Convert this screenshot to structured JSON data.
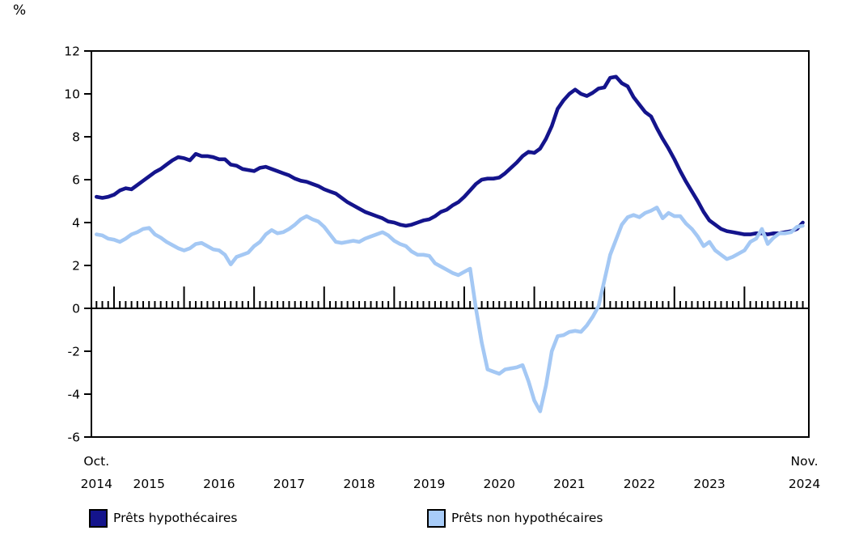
{
  "chart_data": {
    "type": "line",
    "title": "",
    "ylabel": "%",
    "ylim": [
      -6,
      12
    ],
    "ytick_values": [
      12,
      10,
      8,
      6,
      4,
      2,
      0,
      -2,
      -4,
      -6
    ],
    "ytick_labels": [
      "12",
      "10",
      "8",
      "6",
      "4",
      "2",
      "0",
      "-2",
      "-4",
      "-6"
    ],
    "grid": false,
    "legend_position": "bottom",
    "x_axis": {
      "frequency": "monthly",
      "first_point_label_line1": "Oct.",
      "first_point_label_line2": "2014",
      "last_point_label_line1": "Nov.",
      "last_point_label_line2": "2024",
      "year_labels": [
        "2015",
        "2016",
        "2017",
        "2018",
        "2019",
        "2020",
        "2021",
        "2022",
        "2023"
      ]
    },
    "axis_color": "#000000",
    "series": [
      {
        "name": "Prêts hypothécaires",
        "color": "#14148c",
        "values": [
          5.2,
          5.15,
          5.2,
          5.3,
          5.5,
          5.6,
          5.55,
          5.75,
          5.95,
          6.15,
          6.35,
          6.5,
          6.7,
          6.9,
          7.05,
          7.0,
          6.9,
          7.2,
          7.1,
          7.1,
          7.05,
          6.95,
          6.95,
          6.7,
          6.65,
          6.5,
          6.45,
          6.4,
          6.55,
          6.6,
          6.5,
          6.4,
          6.3,
          6.2,
          6.05,
          5.95,
          5.9,
          5.8,
          5.7,
          5.55,
          5.45,
          5.35,
          5.15,
          4.95,
          4.8,
          4.65,
          4.5,
          4.4,
          4.3,
          4.2,
          4.05,
          4.0,
          3.9,
          3.85,
          3.9,
          4.0,
          4.1,
          4.15,
          4.3,
          4.5,
          4.6,
          4.8,
          4.95,
          5.2,
          5.5,
          5.8,
          6.0,
          6.05,
          6.05,
          6.1,
          6.3,
          6.55,
          6.8,
          7.1,
          7.3,
          7.25,
          7.45,
          7.9,
          8.5,
          9.3,
          9.7,
          10.0,
          10.2,
          10.0,
          9.9,
          10.05,
          10.25,
          10.3,
          10.75,
          10.8,
          10.5,
          10.35,
          9.85,
          9.5,
          9.15,
          8.95,
          8.4,
          7.9,
          7.45,
          6.95,
          6.4,
          5.9,
          5.45,
          5.0,
          4.5,
          4.1,
          3.9,
          3.7,
          3.6,
          3.55,
          3.5,
          3.45,
          3.45,
          3.5,
          3.5,
          3.45,
          3.5,
          3.5,
          3.55,
          3.6,
          3.7,
          4.0
        ]
      },
      {
        "name": "Prêts non hypothécaires",
        "color": "#a4c8f4",
        "values": [
          3.45,
          3.4,
          3.25,
          3.2,
          3.1,
          3.25,
          3.45,
          3.55,
          3.7,
          3.75,
          3.45,
          3.3,
          3.1,
          2.95,
          2.8,
          2.7,
          2.8,
          3.0,
          3.05,
          2.9,
          2.75,
          2.7,
          2.5,
          2.05,
          2.4,
          2.5,
          2.6,
          2.9,
          3.1,
          3.45,
          3.65,
          3.5,
          3.55,
          3.7,
          3.9,
          4.15,
          4.3,
          4.15,
          4.05,
          3.8,
          3.45,
          3.1,
          3.05,
          3.1,
          3.15,
          3.1,
          3.25,
          3.35,
          3.45,
          3.55,
          3.4,
          3.15,
          3.0,
          2.9,
          2.65,
          2.5,
          2.5,
          2.45,
          2.1,
          1.95,
          1.8,
          1.65,
          1.55,
          1.7,
          1.85,
          0.0,
          -1.6,
          -2.85,
          -2.95,
          -3.05,
          -2.85,
          -2.8,
          -2.75,
          -2.65,
          -3.4,
          -4.3,
          -4.8,
          -3.6,
          -2.0,
          -1.3,
          -1.25,
          -1.1,
          -1.05,
          -1.1,
          -0.8,
          -0.4,
          0.1,
          1.3,
          2.5,
          3.2,
          3.9,
          4.25,
          4.35,
          4.25,
          4.45,
          4.55,
          4.7,
          4.2,
          4.45,
          4.3,
          4.3,
          3.95,
          3.7,
          3.35,
          2.9,
          3.1,
          2.7,
          2.5,
          2.3,
          2.4,
          2.55,
          2.7,
          3.1,
          3.25,
          3.7,
          3.0,
          3.3,
          3.5,
          3.5,
          3.55,
          3.8,
          3.85
        ]
      }
    ]
  }
}
